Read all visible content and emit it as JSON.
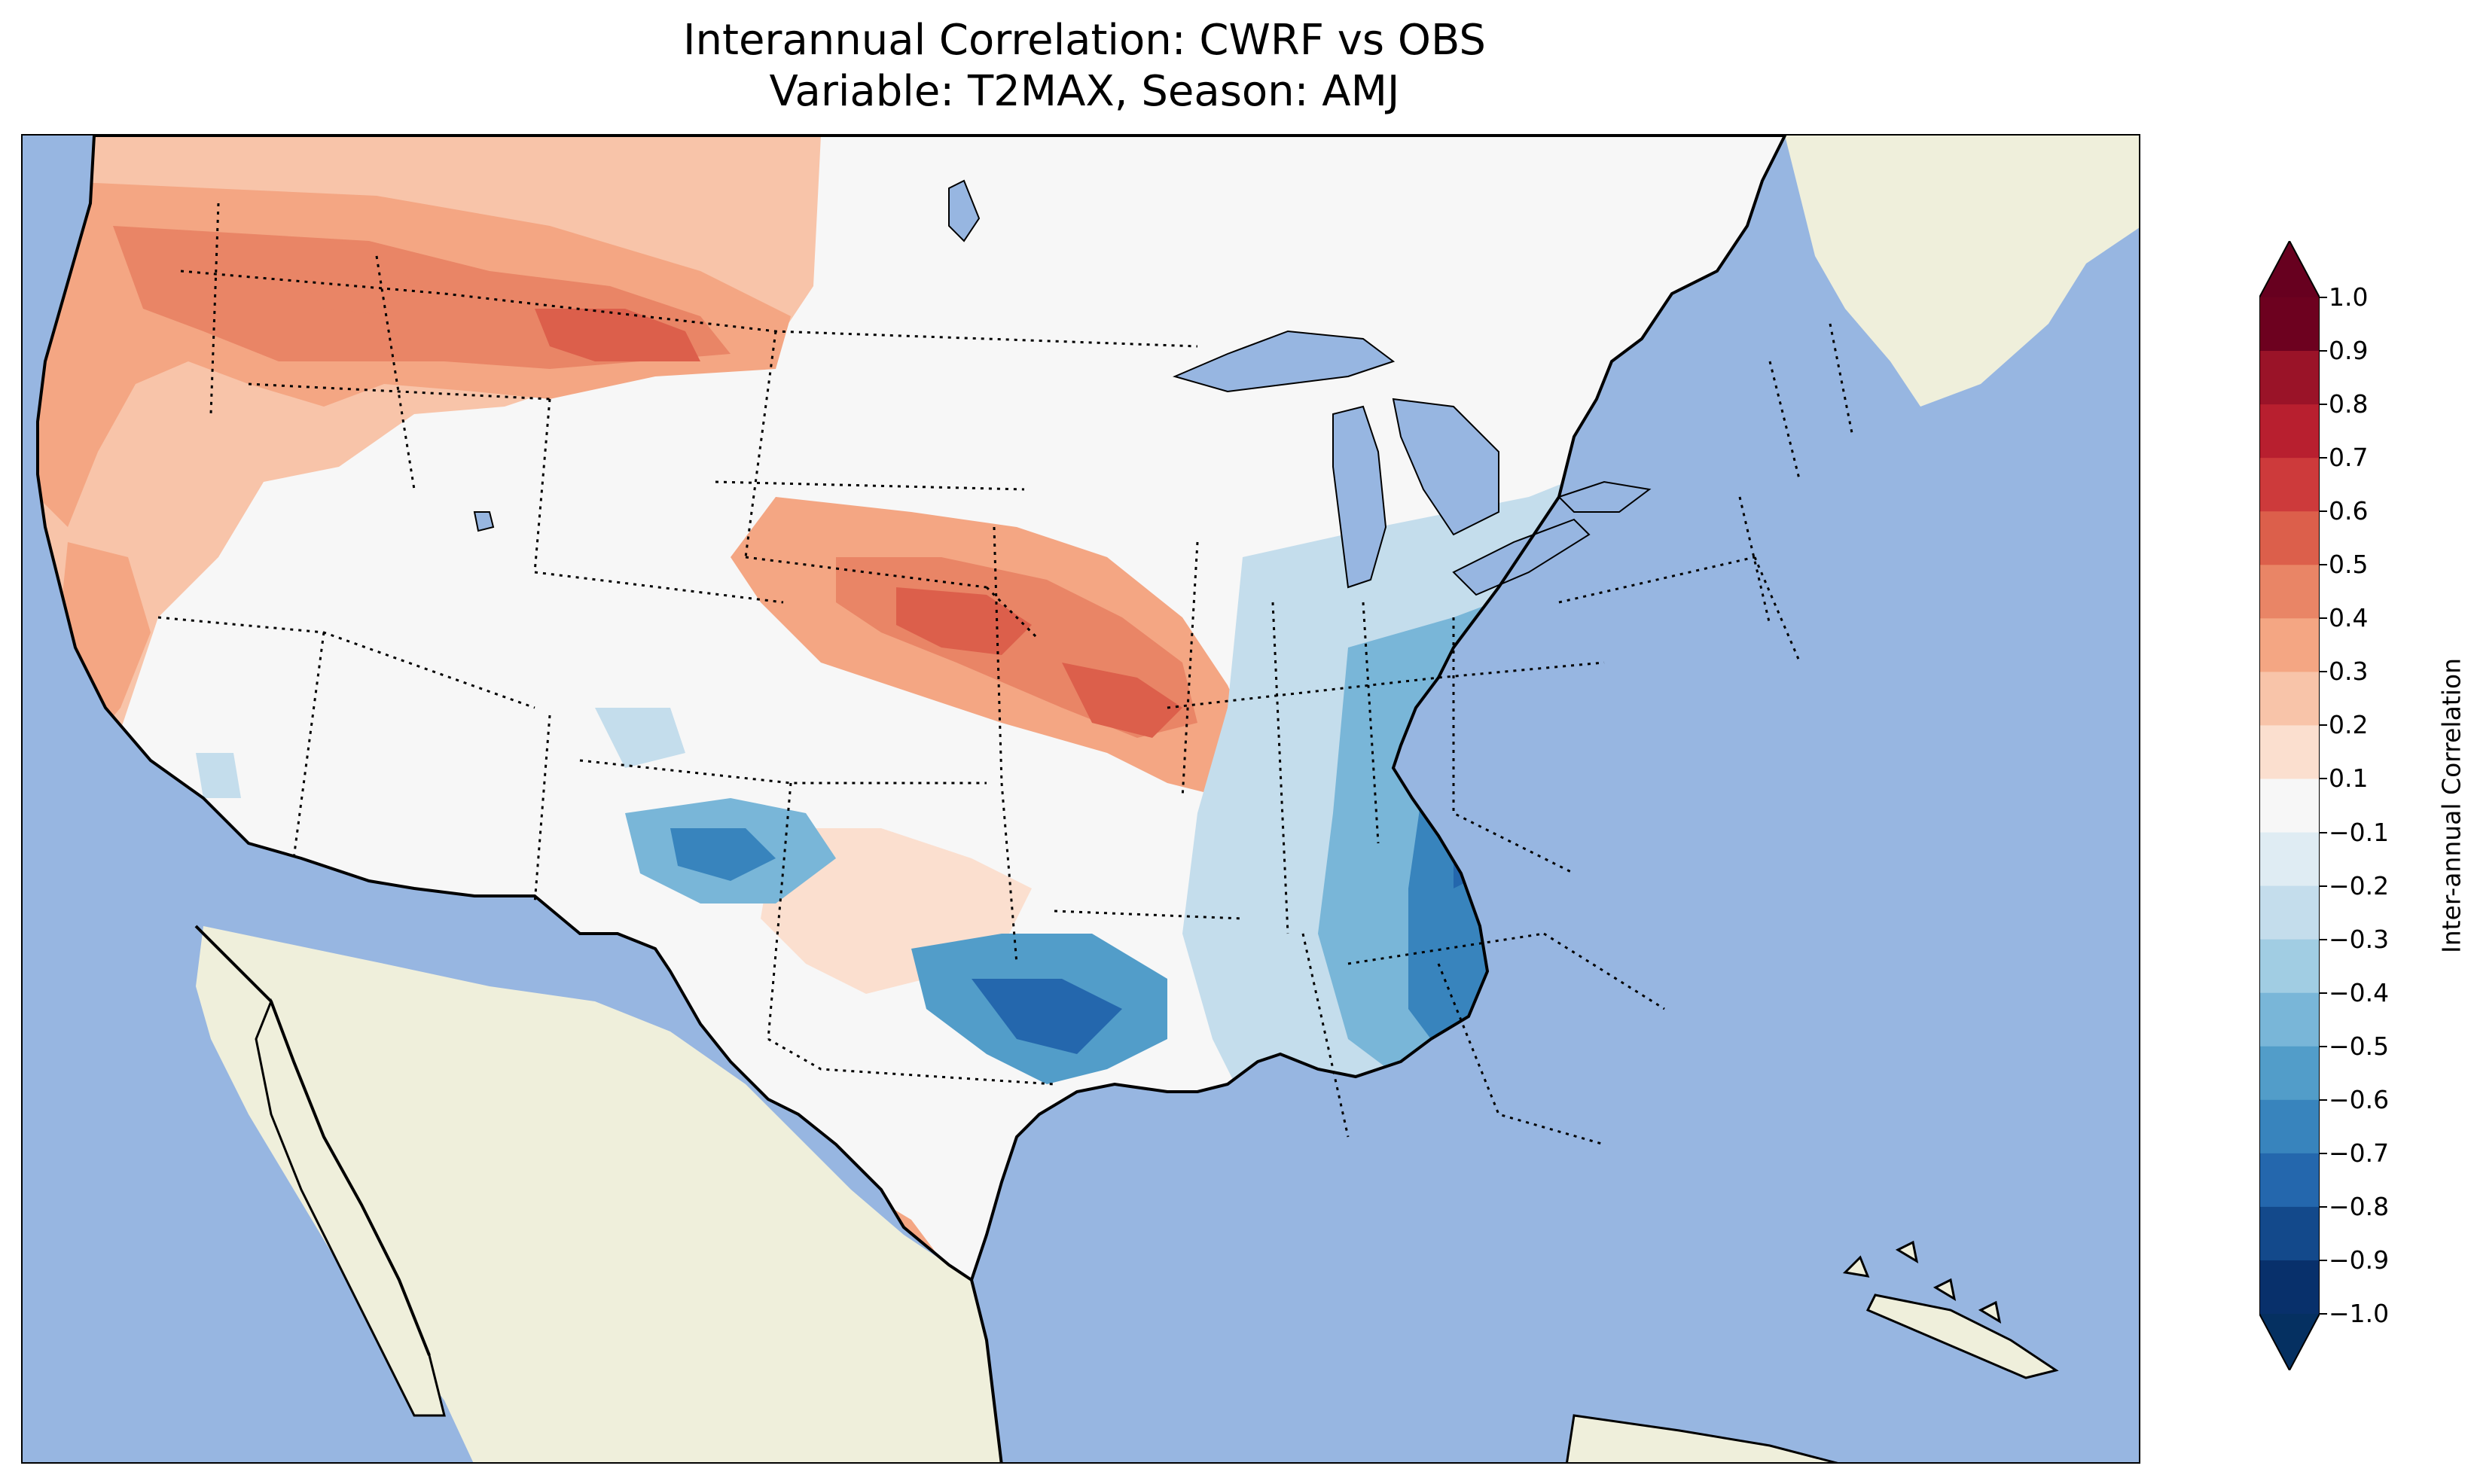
{
  "title": {
    "line1": "Interannual Correlation: CWRF vs OBS",
    "line2": "Variable: T2MAX, Season: AMJ"
  },
  "colors": {
    "ocean": "#97b6e1",
    "land": "#efefdb",
    "lakes": "#97b6e1",
    "coastline": "#000000",
    "state_borders": "#000000"
  },
  "colorbar": {
    "label": "Inter-annual Correlation",
    "ticks": [
      "1.0",
      "0.9",
      "0.8",
      "0.7",
      "0.6",
      "0.5",
      "0.4",
      "0.3",
      "0.2",
      "0.1",
      "−0.1",
      "−0.2",
      "−0.3",
      "−0.4",
      "−0.5",
      "−0.6",
      "−0.7",
      "−0.8",
      "−0.9",
      "−1.0"
    ],
    "tick_values": [
      1.0,
      0.9,
      0.8,
      0.7,
      0.6,
      0.5,
      0.4,
      0.3,
      0.2,
      0.1,
      -0.1,
      -0.2,
      -0.3,
      -0.4,
      -0.5,
      -0.6,
      -0.7,
      -0.8,
      -0.9,
      -1.0
    ],
    "band_colors": [
      "#6d011f",
      "#9a1328",
      "#b81f2f",
      "#cd3a3b",
      "#dc5f4b",
      "#e98566",
      "#f4a683",
      "#f8c4a9",
      "#fbdfcf",
      "#f7f7f7",
      "#dfecf3",
      "#c4ddec",
      "#a1cde3",
      "#79b6d8",
      "#529dc9",
      "#3884bd",
      "#2467ad",
      "#13498b",
      "#08306b"
    ],
    "extend": "both",
    "extend_max_color": "#67001f",
    "extend_min_color": "#053061"
  },
  "map": {
    "projection": "Lambert Conformal",
    "region": "Contiguous United States",
    "state_borders": "dotted",
    "coastline": "solid"
  }
}
